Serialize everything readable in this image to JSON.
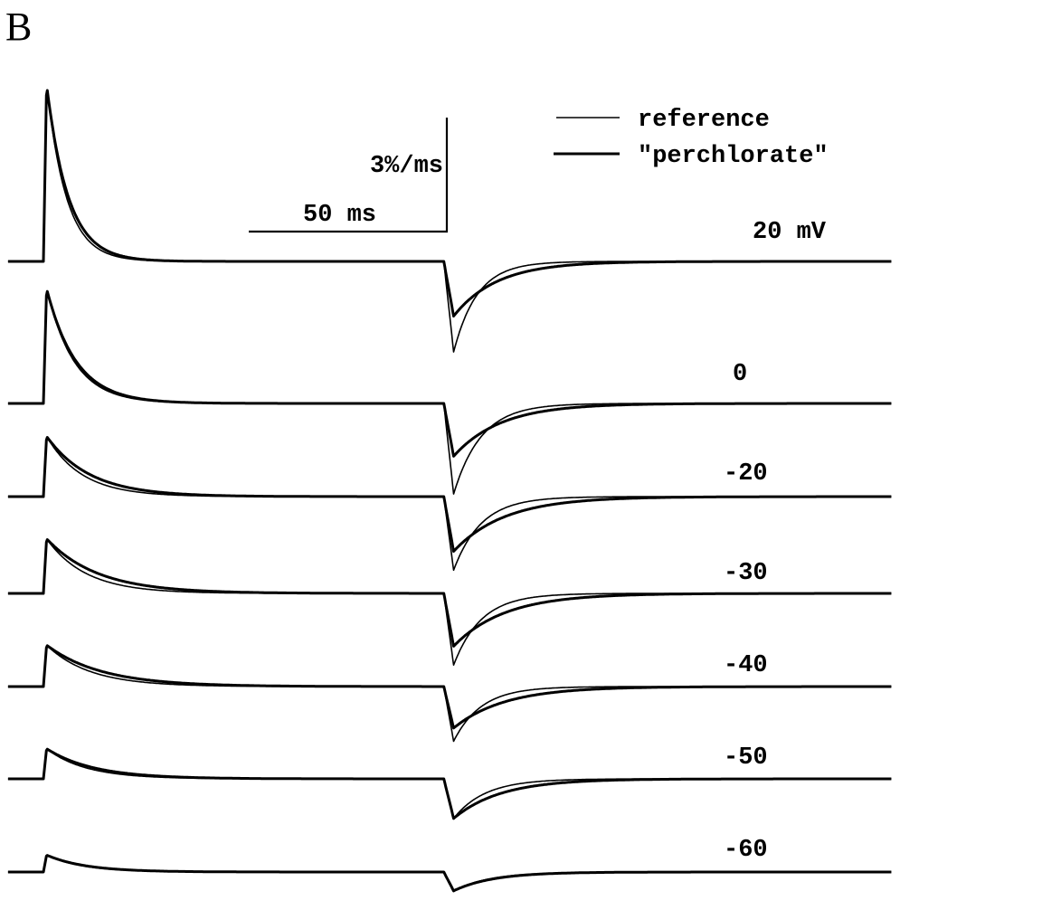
{
  "panel_label": "B",
  "chart_data": {
    "type": "line",
    "xlabel": "",
    "ylabel": "",
    "x_unit": "ms",
    "y_unit": "%/ms",
    "grid": false,
    "legend_placement": "top-right",
    "legend": [
      {
        "name": "reference",
        "line": "thin"
      },
      {
        "name": "\"perchlorate\"",
        "line": "thick"
      }
    ],
    "scale_bars": {
      "vertical": "3%/ms",
      "horizontal": "50 ms",
      "vertical_value": 3,
      "horizontal_value": 50
    },
    "pulse": {
      "on_ms": 0,
      "off_ms": 102,
      "start_ms": -9,
      "end_ms": 216
    },
    "traces": [
      {
        "label": "20 mV",
        "reference": {
          "on_peak": 4.7,
          "on_tau": 5,
          "off_min": -2.4,
          "off_tau": 6
        },
        "perchlorate": {
          "on_peak": 4.7,
          "on_tau": 5.5,
          "off_min": -1.45,
          "off_tau": 11
        }
      },
      {
        "label": "0",
        "reference": {
          "on_peak": 3.05,
          "on_tau": 7,
          "off_min": -2.4,
          "off_tau": 7
        },
        "perchlorate": {
          "on_peak": 3.05,
          "on_tau": 7.5,
          "off_min": -1.4,
          "off_tau": 12
        }
      },
      {
        "label": "-20",
        "reference": {
          "on_peak": 1.6,
          "on_tau": 9,
          "off_min": -1.95,
          "off_tau": 7
        },
        "perchlorate": {
          "on_peak": 1.6,
          "on_tau": 11,
          "off_min": -1.45,
          "off_tau": 13
        }
      },
      {
        "label": "-30",
        "reference": {
          "on_peak": 1.45,
          "on_tau": 10,
          "off_min": -1.9,
          "off_tau": 7
        },
        "perchlorate": {
          "on_peak": 1.45,
          "on_tau": 13,
          "off_min": -1.4,
          "off_tau": 13
        }
      },
      {
        "label": "-40",
        "reference": {
          "on_peak": 1.1,
          "on_tau": 11,
          "off_min": -1.45,
          "off_tau": 7
        },
        "perchlorate": {
          "on_peak": 1.1,
          "on_tau": 14,
          "off_min": -1.1,
          "off_tau": 13
        }
      },
      {
        "label": "-50",
        "reference": {
          "on_peak": 0.8,
          "on_tau": 10,
          "off_min": -1.05,
          "off_tau": 8
        },
        "perchlorate": {
          "on_peak": 0.8,
          "on_tau": 12,
          "off_min": -1.05,
          "off_tau": 12
        }
      },
      {
        "label": "-60",
        "reference": {
          "on_peak": 0.45,
          "on_tau": 9,
          "off_min": -0.5,
          "off_tau": 9
        },
        "perchlorate": {
          "on_peak": 0.45,
          "on_tau": 10,
          "off_min": -0.5,
          "off_tau": 10
        }
      }
    ]
  }
}
